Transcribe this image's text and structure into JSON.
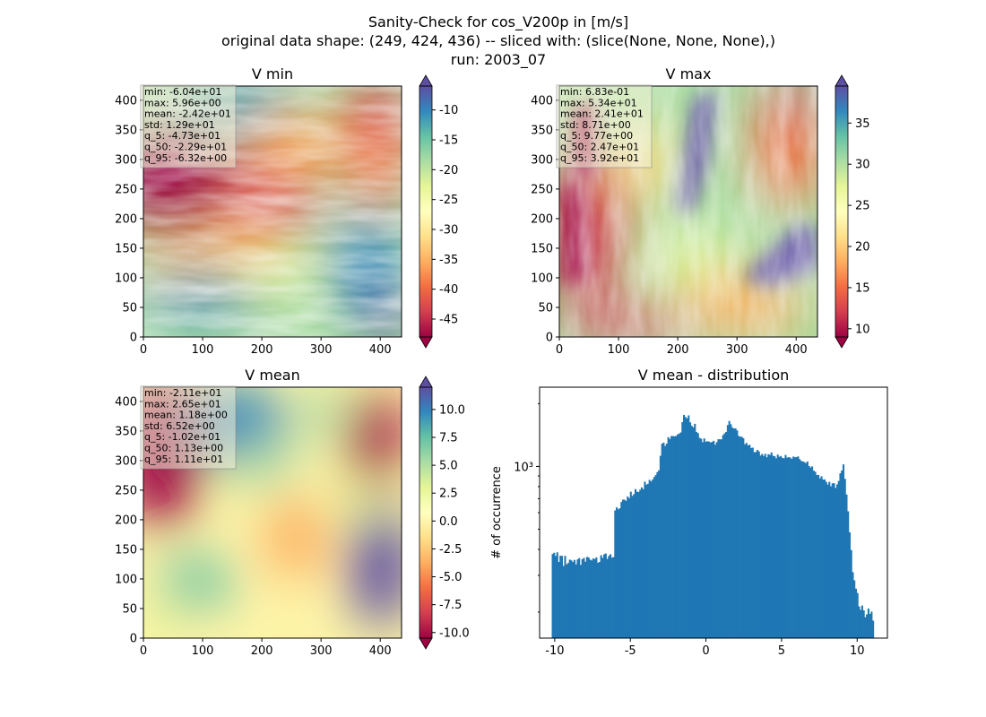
{
  "suptitle": [
    "Sanity-Check for cos_V200p in [m/s]",
    "original data shape: (249, 424, 436) -- sliced with: (slice(None, None, None),)",
    "run: 2003_07"
  ],
  "colors": {
    "hist_bar": "#1f77b4",
    "stats_box_bg": "#f5f5dc"
  },
  "chart_data": [
    {
      "type": "heatmap",
      "title": "V min",
      "colormap": "Spectral",
      "x_ticks": [
        "0",
        "100",
        "200",
        "300",
        "400"
      ],
      "y_ticks": [
        "0",
        "50",
        "100",
        "150",
        "200",
        "250",
        "300",
        "350",
        "400"
      ],
      "xlim": [
        0,
        436
      ],
      "ylim": [
        0,
        424
      ],
      "colorbar": {
        "range": [
          -48,
          -6
        ],
        "ticks": [
          "-10",
          "-15",
          "-20",
          "-25",
          "-30",
          "-35",
          "-40",
          "-45"
        ],
        "extend": "both"
      },
      "stats": [
        "min: -6.04e+01",
        "max: 5.96e+00",
        "mean: -2.42e+01",
        "std: 1.29e+01",
        "q_5: -4.73e+01",
        "q_50: -2.29e+01",
        "q_95: -6.32e+00"
      ]
    },
    {
      "type": "heatmap",
      "title": "V max",
      "colormap": "Spectral",
      "x_ticks": [
        "0",
        "100",
        "200",
        "300",
        "400"
      ],
      "y_ticks": [
        "0",
        "50",
        "100",
        "150",
        "200",
        "250",
        "300",
        "350",
        "400"
      ],
      "xlim": [
        0,
        436
      ],
      "ylim": [
        0,
        424
      ],
      "colorbar": {
        "range": [
          9,
          39.5
        ],
        "ticks": [
          "10",
          "15",
          "20",
          "25",
          "30",
          "35"
        ],
        "extend": "both"
      },
      "stats": [
        "min: 6.83e-01",
        "max: 5.34e+01",
        "mean: 2.41e+01",
        "std: 8.71e+00",
        "q_5: 9.77e+00",
        "q_50: 2.47e+01",
        "q_95: 3.92e+01"
      ]
    },
    {
      "type": "heatmap",
      "title": "V mean",
      "colormap": "Spectral",
      "x_ticks": [
        "0",
        "100",
        "200",
        "300",
        "400"
      ],
      "y_ticks": [
        "0",
        "50",
        "100",
        "150",
        "200",
        "250",
        "300",
        "350",
        "400"
      ],
      "xlim": [
        0,
        436
      ],
      "ylim": [
        0,
        424
      ],
      "colorbar": {
        "range": [
          -10.5,
          12
        ],
        "ticks": [
          "10.0",
          "7.5",
          "5.0",
          "2.5",
          "0.0",
          "-2.5",
          "-5.0",
          "-7.5",
          "-10.0"
        ],
        "extend": "both"
      },
      "stats": [
        "min: -2.11e+01",
        "max: 2.65e+01",
        "mean: 1.18e+00",
        "std: 6.52e+00",
        "q_5: -1.02e+01",
        "q_50: 1.13e+00",
        "q_95: 1.11e+01"
      ]
    },
    {
      "type": "bar",
      "title": "V mean - distribution",
      "ylabel": "# of occurrence",
      "yscale": "log",
      "x_ticks": [
        "-10",
        "-5",
        "0",
        "5",
        "10"
      ],
      "xlim": [
        -11,
        12
      ],
      "ylim": [
        150,
        2400
      ],
      "y_tick_label": "10³",
      "bin_range": [
        -10.2,
        11.1
      ],
      "values": [
        380,
        385,
        372,
        387,
        348,
        373,
        372,
        333,
        372,
        339,
        344,
        357,
        354,
        348,
        356,
        339,
        358,
        363,
        337,
        359,
        364,
        349,
        368,
        366,
        357,
        354,
        362,
        359,
        366,
        345,
        348,
        375,
        364,
        379,
        382,
        360,
        372,
        379,
        365,
        367,
        615,
        636,
        623,
        630,
        675,
        693,
        692,
        684,
        717,
        704,
        756,
        722,
        736,
        778,
        757,
        753,
        773,
        793,
        778,
        845,
        818,
        825,
        862,
        846,
        865,
        890,
        909,
        939,
        958,
        1125,
        1286,
        1301,
        1254,
        1286,
        1381,
        1353,
        1399,
        1399,
        1395,
        1401,
        1425,
        1437,
        1456,
        1631,
        1766,
        1725,
        1702,
        1757,
        1627,
        1566,
        1539,
        1601,
        1464,
        1444,
        1371,
        1358,
        1307,
        1363,
        1314,
        1321,
        1316,
        1304,
        1310,
        1327,
        1270,
        1307,
        1350,
        1350,
        1348,
        1413,
        1441,
        1464,
        1579,
        1652,
        1593,
        1536,
        1520,
        1523,
        1488,
        1400,
        1389,
        1388,
        1365,
        1277,
        1296,
        1261,
        1270,
        1226,
        1230,
        1170,
        1173,
        1200,
        1179,
        1128,
        1147,
        1122,
        1150,
        1106,
        1144,
        1136,
        1167,
        1124,
        1120,
        1094,
        1140,
        1112,
        1122,
        1098,
        1094,
        1135,
        1102,
        1108,
        1102,
        1087,
        1115,
        1107,
        1108,
        1117,
        1084,
        1063,
        1056,
        1050,
        1038,
        1056,
        1004,
        988,
        1000,
        954,
        943,
        909,
        911,
        876,
        897,
        865,
        866,
        843,
        818,
        844,
        803,
        829,
        831,
        788,
        820,
        852,
        927,
        956,
        1023,
        872,
        733,
        609,
        483,
        397,
        311,
        284,
        259,
        247,
        213,
        205,
        215,
        204,
        189,
        195,
        208,
        196,
        201,
        182
      ]
    }
  ]
}
